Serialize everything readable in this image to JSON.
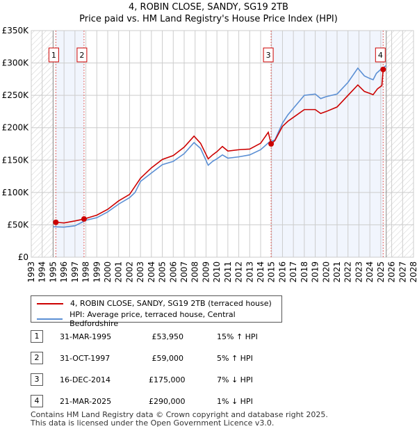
{
  "chart_data": {
    "type": "line",
    "title": "4, ROBIN CLOSE, SANDY, SG19 2TB",
    "subtitle": "Price paid vs. HM Land Registry's House Price Index (HPI)",
    "xlim": [
      1993,
      2028
    ],
    "ylim": [
      0,
      350000
    ],
    "x_ticks": [
      "1993",
      "1994",
      "1995",
      "1996",
      "1997",
      "1998",
      "1999",
      "2000",
      "2001",
      "2002",
      "2003",
      "2004",
      "2005",
      "2006",
      "2007",
      "2008",
      "2009",
      "2010",
      "2011",
      "2012",
      "2013",
      "2014",
      "2015",
      "2016",
      "2017",
      "2018",
      "2019",
      "2020",
      "2021",
      "2022",
      "2023",
      "2024",
      "2025",
      "2026",
      "2027",
      "2028"
    ],
    "y_ticks": [
      {
        "v": 0,
        "label": "£0"
      },
      {
        "v": 50000,
        "label": "£50K"
      },
      {
        "v": 100000,
        "label": "£100K"
      },
      {
        "v": 150000,
        "label": "£150K"
      },
      {
        "v": 200000,
        "label": "£200K"
      },
      {
        "v": 250000,
        "label": "£250K"
      },
      {
        "v": 300000,
        "label": "£300K"
      },
      {
        "v": 350000,
        "label": "£350K"
      }
    ],
    "grid": true,
    "series": [
      {
        "name": "4, ROBIN CLOSE, SANDY, SG19 2TB (terraced house)",
        "color": "#cc0000",
        "points": [
          [
            1995.25,
            53950
          ],
          [
            1996,
            53000
          ],
          [
            1997,
            56000
          ],
          [
            1997.83,
            59000
          ],
          [
            1999,
            65000
          ],
          [
            2000,
            74000
          ],
          [
            2001,
            87000
          ],
          [
            2002,
            97000
          ],
          [
            2003,
            122000
          ],
          [
            2004,
            138000
          ],
          [
            2005,
            151000
          ],
          [
            2006,
            157000
          ],
          [
            2007,
            170000
          ],
          [
            2007.9,
            187000
          ],
          [
            2008.5,
            176000
          ],
          [
            2009.2,
            152000
          ],
          [
            2009.6,
            158000
          ],
          [
            2010,
            163000
          ],
          [
            2010.5,
            171000
          ],
          [
            2011,
            164000
          ],
          [
            2012,
            166000
          ],
          [
            2013,
            167000
          ],
          [
            2014,
            176000
          ],
          [
            2014.7,
            193000
          ],
          [
            2014.96,
            175000
          ],
          [
            2015.3,
            180000
          ],
          [
            2016,
            202000
          ],
          [
            2016.5,
            210000
          ],
          [
            2017,
            216000
          ],
          [
            2018,
            228000
          ],
          [
            2019,
            228000
          ],
          [
            2019.5,
            222000
          ],
          [
            2020,
            225000
          ],
          [
            2021,
            232000
          ],
          [
            2022,
            250000
          ],
          [
            2022.9,
            266000
          ],
          [
            2023.5,
            256000
          ],
          [
            2024,
            253000
          ],
          [
            2024.3,
            251000
          ],
          [
            2024.7,
            260000
          ],
          [
            2025.1,
            265000
          ],
          [
            2025.22,
            290000
          ],
          [
            2025.4,
            292000
          ]
        ]
      },
      {
        "name": "HPI: Average price, terraced house, Central Bedfordshire",
        "color": "#5b8fd4",
        "points": [
          [
            1995,
            47000
          ],
          [
            1996,
            46500
          ],
          [
            1997,
            48500
          ],
          [
            1998,
            57000
          ],
          [
            1999,
            61000
          ],
          [
            2000,
            70000
          ],
          [
            2001,
            82000
          ],
          [
            2002,
            92000
          ],
          [
            2002.5,
            100000
          ],
          [
            2003,
            117000
          ],
          [
            2004,
            130000
          ],
          [
            2005,
            143000
          ],
          [
            2006,
            148000
          ],
          [
            2007,
            160000
          ],
          [
            2007.9,
            177000
          ],
          [
            2008.5,
            168000
          ],
          [
            2009.2,
            142000
          ],
          [
            2009.6,
            148000
          ],
          [
            2010,
            152000
          ],
          [
            2010.5,
            158000
          ],
          [
            2011,
            153000
          ],
          [
            2012,
            155000
          ],
          [
            2013,
            158000
          ],
          [
            2014,
            166000
          ],
          [
            2014.8,
            178000
          ],
          [
            2015.3,
            181000
          ],
          [
            2016,
            207000
          ],
          [
            2016.5,
            220000
          ],
          [
            2017,
            230000
          ],
          [
            2018,
            250000
          ],
          [
            2019,
            252000
          ],
          [
            2019.5,
            245000
          ],
          [
            2020,
            248000
          ],
          [
            2021,
            252000
          ],
          [
            2022,
            270000
          ],
          [
            2022.9,
            292000
          ],
          [
            2023.5,
            280000
          ],
          [
            2024,
            276000
          ],
          [
            2024.3,
            274000
          ],
          [
            2024.6,
            284000
          ],
          [
            2025,
            290000
          ],
          [
            2025.5,
            296000
          ]
        ]
      }
    ],
    "sales": [
      {
        "n": "1",
        "x": 1995.25,
        "price": 53950,
        "date": "31-MAR-1995",
        "price_label": "£53,950",
        "hpi": "15% ↑ HPI"
      },
      {
        "n": "2",
        "x": 1997.83,
        "price": 59000,
        "date": "31-OCT-1997",
        "price_label": "£59,000",
        "hpi": "5% ↑ HPI"
      },
      {
        "n": "3",
        "x": 2014.96,
        "price": 175000,
        "date": "16-DEC-2014",
        "price_label": "£175,000",
        "hpi": "7% ↓ HPI"
      },
      {
        "n": "4",
        "x": 2025.22,
        "price": 290000,
        "date": "21-MAR-2025",
        "price_label": "£290,000",
        "hpi": "1% ↓ HPI"
      }
    ],
    "data_range": [
      1995,
      2025.5
    ]
  },
  "footer": [
    "Contains HM Land Registry data © Crown copyright and database right 2025.",
    "This data is licensed under the Open Government Licence v3.0."
  ]
}
